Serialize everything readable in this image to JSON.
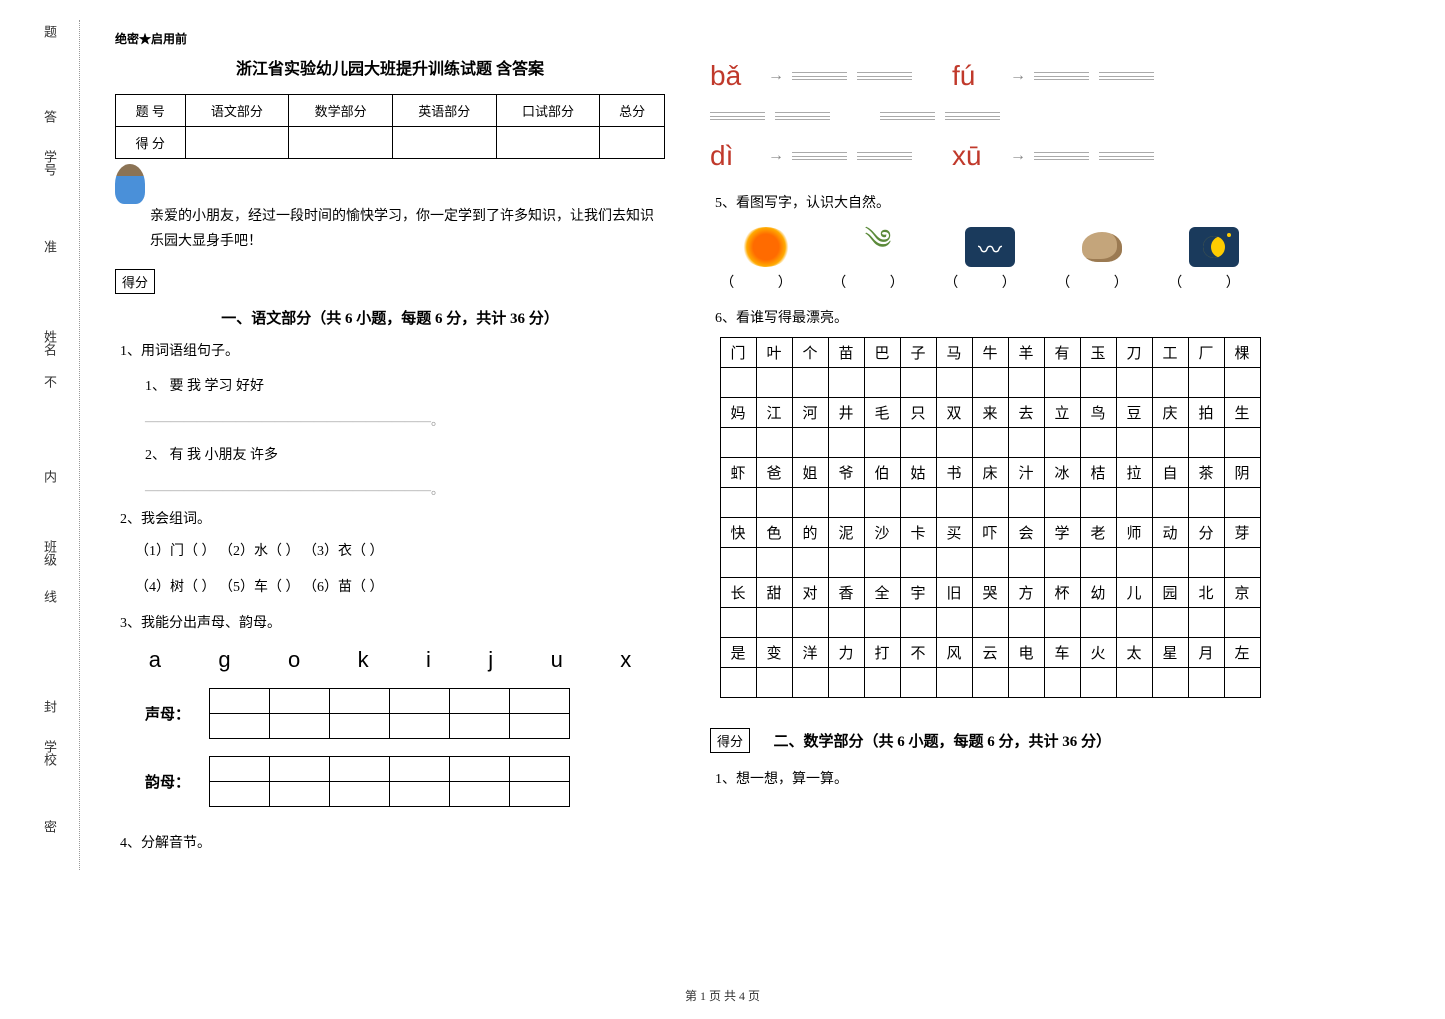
{
  "sidebar": {
    "labels": [
      "题",
      "答",
      "学号",
      "准",
      "姓名",
      "不",
      "内",
      "班级",
      "线",
      "封",
      "学校",
      "密"
    ]
  },
  "header": {
    "confidential": "绝密★启用前",
    "title": "浙江省实验幼儿园大班提升训练试题 含答案"
  },
  "score_table": {
    "row1": [
      "题 号",
      "语文部分",
      "数学部分",
      "英语部分",
      "口试部分",
      "总分"
    ],
    "row2": [
      "得 分",
      "",
      "",
      "",
      "",
      ""
    ]
  },
  "intro": "亲爱的小朋友，经过一段时间的愉快学习，你一定学到了许多知识，让我们去知识乐园大显身手吧！",
  "score_badge": "得分",
  "section1": {
    "title": "一、语文部分（共 6 小题，每题 6 分，共计 36 分）",
    "q1": {
      "label": "1、用词语组句子。",
      "sub1": "1、 要  我  学习   好好",
      "blank1": "——————————————————————。",
      "sub2": "2、 有  我  小朋友   许多",
      "blank2": "——————————————————————。"
    },
    "q2": {
      "label": "2、我会组词。",
      "line1": "（1）门（      ）  （2）水（      ）  （3）衣（      ）",
      "line2": "（4）树（      ）  （5）车（      ）  （6）苗（      ）"
    },
    "q3": {
      "label": "3、我能分出声母、韵母。",
      "letters": [
        "a",
        "g",
        "o",
        "k",
        "i",
        "j",
        "u",
        "x"
      ],
      "label_sheng": "声母：",
      "label_yun": "韵母："
    },
    "q4": {
      "label": "4、分解音节。"
    },
    "q5": {
      "label": "5、看图写字，认识大自然。",
      "pinyin": [
        "bǎ",
        "fú",
        "dì",
        "xū"
      ],
      "paren": "（    ）"
    },
    "q6": {
      "label": "6、看谁写得最漂亮。",
      "chars": [
        [
          "门",
          "叶",
          "个",
          "苗",
          "巴",
          "子",
          "马",
          "牛",
          "羊",
          "有",
          "玉",
          "刀",
          "工",
          "厂",
          "棵"
        ],
        [
          "妈",
          "江",
          "河",
          "井",
          "毛",
          "只",
          "双",
          "来",
          "去",
          "立",
          "鸟",
          "豆",
          "庆",
          "拍",
          "生"
        ],
        [
          "虾",
          "爸",
          "姐",
          "爷",
          "伯",
          "姑",
          "书",
          "床",
          "汁",
          "冰",
          "桔",
          "拉",
          "自",
          "茶",
          "阴"
        ],
        [
          "快",
          "色",
          "的",
          "泥",
          "沙",
          "卡",
          "买",
          "吓",
          "会",
          "学",
          "老",
          "师",
          "动",
          "分",
          "芽"
        ],
        [
          "长",
          "甜",
          "对",
          "香",
          "全",
          "宇",
          "旧",
          "哭",
          "方",
          "杯",
          "幼",
          "儿",
          "园",
          "北",
          "京"
        ],
        [
          "是",
          "变",
          "洋",
          "力",
          "打",
          "不",
          "风",
          "云",
          "电",
          "车",
          "火",
          "太",
          "星",
          "月",
          "左"
        ]
      ]
    }
  },
  "section2": {
    "title": "二、数学部分（共 6 小题，每题 6 分，共计 36 分）",
    "q1": "1、想一想，算一算。"
  },
  "footer": "第 1 页 共 4 页",
  "colors": {
    "pinyin_red": "#c0392b",
    "text": "#000000",
    "border": "#000000"
  }
}
